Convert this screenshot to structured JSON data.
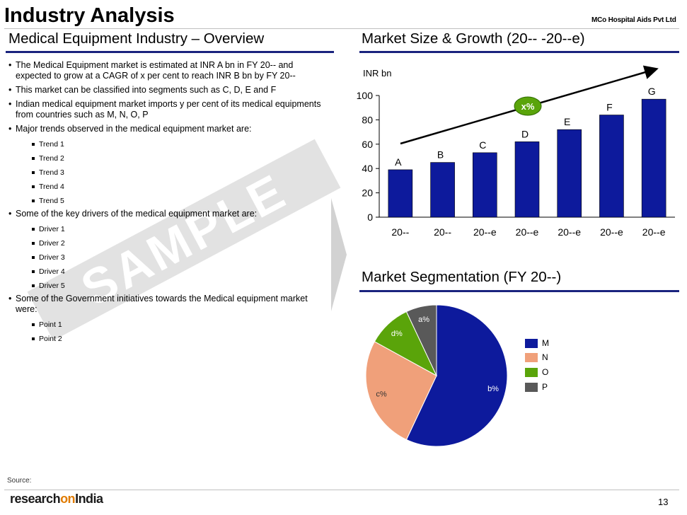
{
  "header": {
    "title": "Industry Analysis",
    "company": "MCo Hospital Aids Pvt Ltd"
  },
  "left": {
    "heading": "Medical Equipment Industry – Overview",
    "bullets": [
      {
        "text": "The Medical Equipment market is estimated at INR A bn in FY 20-- and expected to grow at a CAGR of x per cent to reach INR B bn by FY 20--"
      },
      {
        "text": "This market can be classified into segments such as C, D, E and F"
      },
      {
        "text": "Indian medical equipment market imports y per cent of its medical equipments from countries such as M, N, O, P"
      },
      {
        "text": "Major trends observed in the medical equipment market are:",
        "sub": [
          "Trend 1",
          "Trend 2",
          "Trend 3",
          "Trend 4",
          "Trend 5"
        ]
      },
      {
        "text": "Some of the key drivers of the medical equipment market are:",
        "sub": [
          "Driver 1",
          "Driver 2",
          "Driver 3",
          "Driver 4",
          "Driver 5"
        ]
      },
      {
        "text": "Some of the Government initiatives towards the Medical equipment market were:",
        "sub": [
          "Point 1",
          "Point 2"
        ]
      }
    ],
    "watermark": "SAMPLE"
  },
  "right": {
    "heading": "Market Size & Growth (20-- -20--e)",
    "segmentation_heading": "Market Segmentation (FY 20--)"
  },
  "colors": {
    "bar": "#0d1a9c",
    "pie_m": "#0d1a9c",
    "pie_n": "#f0a07a",
    "pie_o": "#5aa40a",
    "pie_p": "#595959",
    "title_rule": "#1a237e"
  },
  "chart_data": [
    {
      "type": "bar",
      "title": "Market Size & Growth (20-- -20--e)",
      "ylabel": "INR bn",
      "categories": [
        "20--",
        "20--",
        "20--e",
        "20--e",
        "20--e",
        "20--e",
        "20--e"
      ],
      "values": [
        39,
        45,
        53,
        62,
        72,
        84,
        97
      ],
      "data_labels": [
        "A",
        "B",
        "C",
        "D",
        "E",
        "F",
        "G"
      ],
      "ylim": [
        0,
        100
      ],
      "yticks": [
        0,
        20,
        40,
        60,
        80,
        100
      ],
      "annotation": "x%",
      "grid": false
    },
    {
      "type": "pie",
      "title": "Market Segmentation (FY 20--)",
      "labels": [
        "M",
        "N",
        "O",
        "P"
      ],
      "slice_labels": [
        "b%",
        "c%",
        "d%",
        "a%"
      ],
      "values": [
        57,
        26,
        10,
        7
      ],
      "legend": "right"
    }
  ],
  "footer": {
    "source": "Source:",
    "page_number": "13",
    "logo": {
      "part1": "research",
      "part2": "on",
      "part3": "India"
    }
  }
}
